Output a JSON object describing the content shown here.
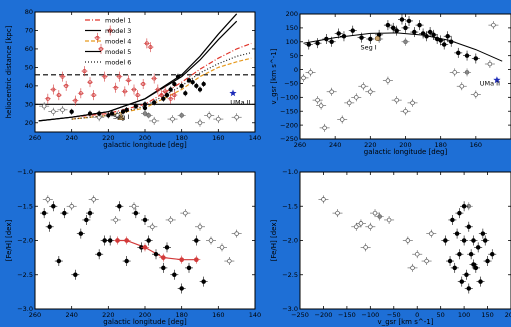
{
  "colors": {
    "background": "#1e6fd6",
    "model_1": "#e0342a",
    "model_3": "#000000",
    "model_4": "#e69a1f",
    "model_5": "#000000",
    "model_6": "#1a1a1a",
    "red_points": "#d23a3a",
    "open_points": "#555555",
    "filled_points": "#000000",
    "uma_ii": "#1d2bb8",
    "seg_i": "#c8a26b"
  },
  "chart_data": [
    {
      "id": "panel_a",
      "type": "scatter",
      "xlabel": "galactic longitude [deg]",
      "ylabel": "heliocentric distance [kpc]",
      "xlim": [
        260,
        140
      ],
      "ylim": [
        15,
        80
      ],
      "xticks": [
        260,
        240,
        220,
        200,
        180,
        160,
        140
      ],
      "yticks": [
        20,
        30,
        40,
        50,
        60,
        70,
        80
      ],
      "xtick_labels": [
        "260",
        "240",
        "220",
        "200",
        "180",
        "160",
        "140"
      ],
      "ytick_labels": [
        "20",
        "30",
        "40",
        "50",
        "60",
        "70",
        "80"
      ],
      "legend_position": "top-right",
      "legend": [
        "model 1",
        "model 3",
        "model 4",
        "model 5",
        "model 6"
      ],
      "hlines": [
        46,
        30
      ],
      "annotations": [
        {
          "text": "Seg I",
          "x": 213,
          "y": 22
        },
        {
          "text": "UMa II",
          "x": 148,
          "y": 30
        }
      ],
      "series": [
        {
          "name": "model 1",
          "style": "dashdot",
          "color": "#e0342a",
          "x": [
            240,
            220,
            200,
            180,
            170,
            160,
            150,
            142
          ],
          "y": [
            23,
            25,
            30,
            42,
            49,
            55,
            60,
            63
          ]
        },
        {
          "name": "model 3",
          "style": "solid",
          "color": "#000000",
          "x": [
            258,
            240,
            220,
            200,
            180,
            170,
            160,
            150
          ],
          "y": [
            21,
            23,
            26,
            33,
            46,
            56,
            68,
            79
          ]
        },
        {
          "name": "model 4",
          "style": "dashed",
          "color": "#e69a1f",
          "x": [
            240,
            220,
            200,
            180,
            170,
            160,
            150,
            142
          ],
          "y": [
            22,
            24,
            28,
            38,
            45,
            50,
            53,
            55
          ]
        },
        {
          "name": "model 5",
          "style": "solid",
          "color": "#000000",
          "x": [
            258,
            240,
            220,
            200,
            180,
            170,
            160,
            150
          ],
          "y": [
            21,
            23,
            26,
            33,
            45,
            54,
            65,
            75
          ]
        },
        {
          "name": "model 6",
          "style": "dotted",
          "color": "#1a1a1a",
          "x": [
            240,
            220,
            200,
            180,
            170,
            160,
            150,
            142
          ],
          "y": [
            22,
            24,
            29,
            40,
            47,
            52,
            56,
            58
          ]
        }
      ],
      "points_red_open": [
        [
          253,
          33
        ],
        [
          250,
          38
        ],
        [
          247,
          35
        ],
        [
          245,
          45
        ],
        [
          243,
          40
        ],
        [
          238,
          32
        ],
        [
          235,
          36
        ],
        [
          233,
          48
        ],
        [
          230,
          42
        ],
        [
          228,
          35
        ],
        [
          226,
          66
        ],
        [
          224,
          60
        ],
        [
          222,
          45
        ],
        [
          219,
          70
        ],
        [
          216,
          39
        ],
        [
          214,
          45
        ],
        [
          211,
          37
        ],
        [
          209,
          43
        ],
        [
          206,
          38
        ],
        [
          204,
          35
        ],
        [
          201,
          41
        ],
        [
          199,
          63
        ],
        [
          197,
          61
        ],
        [
          195,
          44
        ],
        [
          193,
          38
        ],
        [
          191,
          35
        ],
        [
          189,
          37
        ],
        [
          186,
          33
        ],
        [
          184,
          35
        ]
      ],
      "points_black_filled": [
        [
          240,
          26
        ],
        [
          230,
          25
        ],
        [
          225,
          25
        ],
        [
          220,
          24
        ],
        [
          210,
          27
        ],
        [
          205,
          29
        ],
        [
          200,
          30
        ],
        [
          195,
          31
        ],
        [
          190,
          33
        ],
        [
          188,
          35
        ],
        [
          186,
          38
        ],
        [
          184,
          41
        ],
        [
          182,
          45
        ],
        [
          180,
          40
        ],
        [
          178,
          36
        ],
        [
          176,
          43
        ],
        [
          174,
          42
        ],
        [
          172,
          40
        ],
        [
          170,
          38
        ],
        [
          168,
          41
        ],
        [
          200,
          28
        ],
        [
          212,
          26
        ],
        [
          218,
          25
        ]
      ],
      "points_open": [
        [
          255,
          29
        ],
        [
          250,
          26
        ],
        [
          245,
          27
        ],
        [
          225,
          23
        ],
        [
          215,
          24
        ],
        [
          195,
          21
        ],
        [
          185,
          22
        ],
        [
          170,
          20
        ],
        [
          160,
          22
        ],
        [
          150,
          23
        ],
        [
          165,
          24
        ]
      ],
      "points_gray_filled": [
        [
          200,
          25
        ],
        [
          198,
          24
        ],
        [
          180,
          24
        ]
      ],
      "special_points": [
        {
          "label": "Seg I",
          "x": 213,
          "y": 23,
          "marker": "triangle",
          "color": "#c8a26b"
        },
        {
          "label": "UMa II",
          "x": 152,
          "y": 36,
          "marker": "star",
          "color": "#1d2bb8"
        }
      ]
    },
    {
      "id": "panel_b",
      "type": "scatter",
      "xlabel": "galactic longitude [deg]",
      "ylabel": "v_gsr [km s^-1]",
      "xlim": [
        260,
        140
      ],
      "ylim": [
        -250,
        200
      ],
      "xticks": [
        260,
        240,
        220,
        200,
        180,
        160
      ],
      "yticks": [
        -250,
        -200,
        -150,
        -100,
        -50,
        0,
        50,
        100,
        150,
        200
      ],
      "xtick_labels": [
        "260",
        "240",
        "220",
        "200",
        "180",
        "160"
      ],
      "ytick_labels": [
        "−250",
        "−200",
        "−150",
        "−100",
        "−50",
        "0",
        "50",
        "100",
        "150",
        "200"
      ],
      "annotations": [
        {
          "text": "Seg I",
          "x": 221,
          "y": 72
        },
        {
          "text": "UMa II",
          "x": 152,
          "y": -58
        }
      ],
      "model_curve": {
        "x": [
          258,
          240,
          220,
          205,
          190,
          175,
          160,
          145
        ],
        "y": [
          95,
          115,
          130,
          132,
          124,
          105,
          72,
          30
        ]
      },
      "points_filled": [
        [
          255,
          90
        ],
        [
          250,
          95
        ],
        [
          245,
          110
        ],
        [
          242,
          100
        ],
        [
          238,
          130
        ],
        [
          235,
          120
        ],
        [
          230,
          140
        ],
        [
          225,
          115
        ],
        [
          220,
          110
        ],
        [
          215,
          125
        ],
        [
          210,
          160
        ],
        [
          207,
          150
        ],
        [
          205,
          140
        ],
        [
          200,
          150
        ],
        [
          195,
          135
        ],
        [
          192,
          160
        ],
        [
          190,
          130
        ],
        [
          188,
          120
        ],
        [
          186,
          135
        ],
        [
          184,
          125
        ],
        [
          182,
          110
        ],
        [
          180,
          105
        ],
        [
          178,
          90
        ],
        [
          176,
          120
        ],
        [
          174,
          100
        ],
        [
          170,
          60
        ],
        [
          165,
          50
        ],
        [
          160,
          40
        ],
        [
          202,
          180
        ],
        [
          198,
          175
        ]
      ],
      "points_open": [
        [
          258,
          -30
        ],
        [
          254,
          -10
        ],
        [
          250,
          -110
        ],
        [
          248,
          -130
        ],
        [
          246,
          -210
        ],
        [
          242,
          -80
        ],
        [
          236,
          -180
        ],
        [
          232,
          -120
        ],
        [
          228,
          -100
        ],
        [
          224,
          -60
        ],
        [
          220,
          -80
        ],
        [
          210,
          -40
        ],
        [
          205,
          -110
        ],
        [
          200,
          -150
        ],
        [
          196,
          -120
        ],
        [
          172,
          -10
        ],
        [
          168,
          -60
        ],
        [
          160,
          -90
        ],
        [
          152,
          20
        ],
        [
          150,
          160
        ]
      ],
      "points_gray": [
        [
          215,
          110
        ],
        [
          200,
          100
        ],
        [
          165,
          -10
        ]
      ],
      "special_points": [
        {
          "label": "Seg I",
          "x": 216,
          "y": 112,
          "marker": "circle",
          "color": "#c8a26b"
        },
        {
          "label": "UMa II",
          "x": 148,
          "y": -38,
          "marker": "star",
          "color": "#1d2bb8"
        }
      ]
    },
    {
      "id": "panel_c",
      "type": "scatter",
      "xlabel": "galactic longitude [deg]",
      "ylabel": "[Fe/H] [dex]",
      "xlim": [
        260,
        140
      ],
      "ylim": [
        -3.0,
        -1.0
      ],
      "xticks": [
        260,
        240,
        220,
        200,
        180,
        160,
        140
      ],
      "yticks": [
        -3.0,
        -2.5,
        -2.0,
        -1.5,
        -1.0
      ],
      "xtick_labels": [
        "260",
        "240",
        "220",
        "200",
        "180",
        "160",
        "140"
      ],
      "ytick_labels": [
        "−3.0",
        "−2.5",
        "−2.0",
        "−1.5",
        "−1.0"
      ],
      "points_filled": [
        [
          255,
          -1.6
        ],
        [
          252,
          -1.8
        ],
        [
          250,
          -1.5
        ],
        [
          247,
          -2.3
        ],
        [
          244,
          -1.6
        ],
        [
          238,
          -2.5
        ],
        [
          235,
          -1.9
        ],
        [
          232,
          -1.7
        ],
        [
          230,
          -1.6
        ],
        [
          225,
          -2.2
        ],
        [
          222,
          -2.0
        ],
        [
          219,
          -2.0
        ],
        [
          214,
          -1.5
        ],
        [
          210,
          -2.3
        ],
        [
          205,
          -1.6
        ],
        [
          202,
          -2.1
        ],
        [
          198,
          -2.0
        ],
        [
          194,
          -2.2
        ],
        [
          190,
          -2.4
        ],
        [
          188,
          -2.1
        ],
        [
          184,
          -2.5
        ],
        [
          180,
          -2.7
        ],
        [
          176,
          -2.4
        ],
        [
          172,
          -2.0
        ],
        [
          168,
          -2.6
        ],
        [
          200,
          -1.7
        ]
      ],
      "points_open": [
        [
          253,
          -1.4
        ],
        [
          240,
          -1.5
        ],
        [
          228,
          -1.4
        ],
        [
          216,
          -1.7
        ],
        [
          206,
          -1.5
        ],
        [
          196,
          -1.8
        ],
        [
          186,
          -1.7
        ],
        [
          178,
          -1.6
        ],
        [
          170,
          -1.8
        ],
        [
          164,
          -2.0
        ],
        [
          158,
          -2.1
        ],
        [
          154,
          -2.3
        ],
        [
          150,
          -1.9
        ]
      ],
      "points_red": [
        [
          215,
          -2.0
        ],
        [
          210,
          -2.0
        ],
        [
          200,
          -2.1
        ],
        [
          190,
          -2.25
        ],
        [
          180,
          -2.28
        ],
        [
          172,
          -2.28
        ]
      ],
      "red_line": {
        "x": [
          215,
          210,
          200,
          190,
          180,
          172
        ],
        "y": [
          -2.0,
          -2.0,
          -2.1,
          -2.25,
          -2.28,
          -2.28
        ]
      }
    },
    {
      "id": "panel_d",
      "type": "scatter",
      "xlabel": "v_gsr [km s^-1]",
      "ylabel": "[Fe/H] [dex]",
      "xlim": [
        -250,
        200
      ],
      "ylim": [
        -3.0,
        -1.0
      ],
      "xticks": [
        -250,
        -200,
        -150,
        -100,
        -50,
        0,
        50,
        100,
        150,
        200
      ],
      "yticks": [
        -3.0,
        -2.5,
        -2.0,
        -1.5,
        -1.0
      ],
      "xtick_labels": [
        "−250",
        "−200",
        "−150",
        "−100",
        "−50",
        "0",
        "50",
        "100",
        "150",
        "200"
      ],
      "ytick_labels": [
        "−3.0",
        "−2.5",
        "−2.0",
        "−1.5",
        "−1.0"
      ],
      "points_filled": [
        [
          100,
          -1.5
        ],
        [
          110,
          -1.8
        ],
        [
          120,
          -2.0
        ],
        [
          90,
          -2.2
        ],
        [
          80,
          -2.4
        ],
        [
          70,
          -2.3
        ],
        [
          130,
          -2.1
        ],
        [
          140,
          -1.9
        ],
        [
          60,
          -2.0
        ],
        [
          150,
          -2.3
        ],
        [
          95,
          -2.6
        ],
        [
          105,
          -2.5
        ],
        [
          115,
          -2.2
        ],
        [
          125,
          -2.4
        ],
        [
          85,
          -1.9
        ],
        [
          135,
          -2.6
        ],
        [
          75,
          -1.7
        ],
        [
          145,
          -2.0
        ],
        [
          160,
          -2.2
        ],
        [
          110,
          -2.7
        ],
        [
          100,
          -2.0
        ],
        [
          120,
          -2.35
        ],
        [
          90,
          -1.6
        ]
      ],
      "points_open": [
        [
          -200,
          -1.4
        ],
        [
          -170,
          -1.6
        ],
        [
          -130,
          -1.8
        ],
        [
          -110,
          -2.1
        ],
        [
          -90,
          -1.6
        ],
        [
          -60,
          -1.7
        ],
        [
          -20,
          -2.0
        ],
        [
          0,
          -2.2
        ],
        [
          -10,
          -2.4
        ],
        [
          30,
          -1.9
        ],
        [
          20,
          -2.3
        ],
        [
          -120,
          -1.75
        ],
        [
          -100,
          -1.8
        ]
      ],
      "points_gray": [
        [
          -80,
          -1.65
        ],
        [
          110,
          -1.5
        ]
      ]
    }
  ]
}
